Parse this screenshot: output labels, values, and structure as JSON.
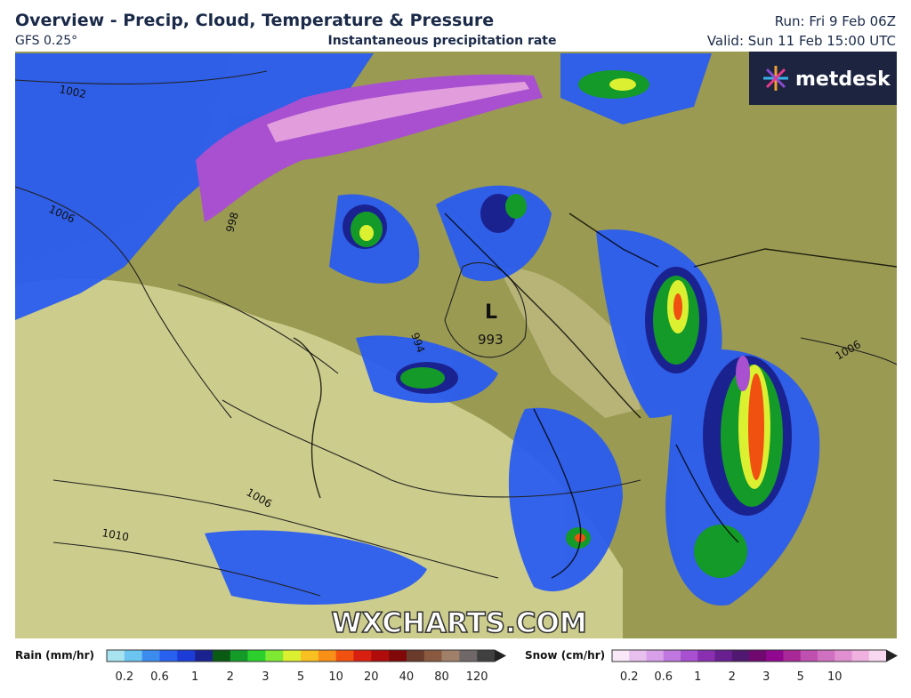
{
  "header": {
    "title": "Overview - Precip, Cloud, Temperature & Pressure",
    "model": "GFS 0.25°",
    "subtitle": "Instantaneous precipitation rate",
    "run": "Run: Fri 9 Feb 06Z",
    "valid": "Valid: Sun 11 Feb 15:00 UTC"
  },
  "logo": "metdesk",
  "watermark": "WXCHARTS.COM",
  "map": {
    "isobar_labels": [
      "1002",
      "1006",
      "998",
      "994",
      "1006",
      "1010",
      "1006"
    ],
    "low": {
      "symbol": "L",
      "pressure": "993"
    }
  },
  "legend": {
    "rain": {
      "label": "Rain (mm/hr)",
      "ticks": [
        "0.2",
        "0.6",
        "1",
        "2",
        "3",
        "5",
        "10",
        "20",
        "40",
        "80",
        "120"
      ],
      "colors": [
        "#a8e4f0",
        "#6cc4f0",
        "#3c8cf0",
        "#2860f0",
        "#1c3cd8",
        "#1a2290",
        "#0a5a14",
        "#149a28",
        "#2cd02c",
        "#7ee832",
        "#dcf032",
        "#f8c020",
        "#f89018",
        "#f05010",
        "#d82010",
        "#b00c0c",
        "#800808",
        "#6a3a2a",
        "#8a5a40",
        "#a08068",
        "#706868",
        "#404040"
      ]
    },
    "snow": {
      "label": "Snow (cm/hr)",
      "ticks": [
        "0.2",
        "0.6",
        "1",
        "2",
        "3",
        "5",
        "10"
      ],
      "colors": [
        "#f8e8f8",
        "#e8c0f0",
        "#d8a0e8",
        "#c078e0",
        "#a850d0",
        "#8830b0",
        "#682090",
        "#501870",
        "#700870",
        "#900890",
        "#a82898",
        "#c050b0",
        "#d070c0",
        "#e090d0",
        "#f0b0e0",
        "#f8d8f0"
      ]
    }
  }
}
